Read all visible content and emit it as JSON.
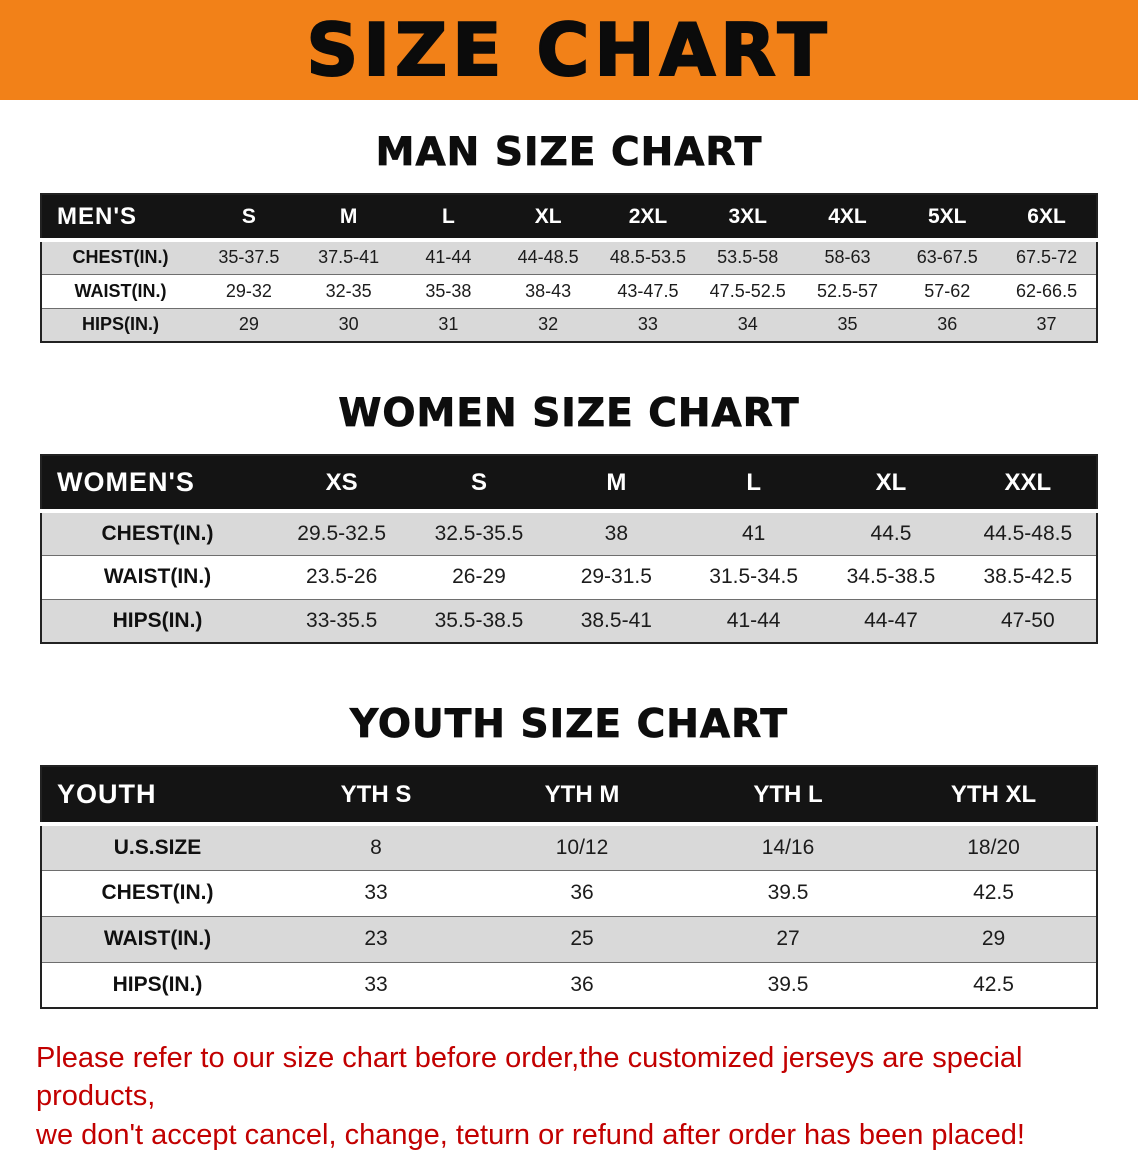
{
  "banner": {
    "title": "SIZE CHART"
  },
  "sections": [
    {
      "id": "men",
      "heading": "MAN SIZE CHART",
      "table": {
        "header": [
          "MEN'S",
          "S",
          "M",
          "L",
          "XL",
          "2XL",
          "3XL",
          "4XL",
          "5XL",
          "6XL"
        ],
        "rows": [
          [
            "CHEST(IN.)",
            "35-37.5",
            "37.5-41",
            "41-44",
            "44-48.5",
            "48.5-53.5",
            "53.5-58",
            "58-63",
            "63-67.5",
            "67.5-72"
          ],
          [
            "WAIST(IN.)",
            "29-32",
            "32-35",
            "35-38",
            "38-43",
            "43-47.5",
            "47.5-52.5",
            "52.5-57",
            "57-62",
            "62-66.5"
          ],
          [
            "HIPS(IN.)",
            "29",
            "30",
            "31",
            "32",
            "33",
            "34",
            "35",
            "36",
            "37"
          ]
        ]
      }
    },
    {
      "id": "women",
      "heading": "WOMEN SIZE CHART",
      "table": {
        "header": [
          "WOMEN'S",
          "XS",
          "S",
          "M",
          "L",
          "XL",
          "XXL"
        ],
        "rows": [
          [
            "CHEST(IN.)",
            "29.5-32.5",
            "32.5-35.5",
            "38",
            "41",
            "44.5",
            "44.5-48.5"
          ],
          [
            "WAIST(IN.)",
            "23.5-26",
            "26-29",
            "29-31.5",
            "31.5-34.5",
            "34.5-38.5",
            "38.5-42.5"
          ],
          [
            "HIPS(IN.)",
            "33-35.5",
            "35.5-38.5",
            "38.5-41",
            "41-44",
            "44-47",
            "47-50"
          ]
        ]
      }
    },
    {
      "id": "youth",
      "heading": "YOUTH SIZE CHART",
      "table": {
        "header": [
          "YOUTH",
          "YTH S",
          "YTH M",
          "YTH L",
          "YTH XL"
        ],
        "rows": [
          [
            "U.S.SIZE",
            "8",
            "10/12",
            "14/16",
            "18/20"
          ],
          [
            "CHEST(IN.)",
            "33",
            "36",
            "39.5",
            "42.5"
          ],
          [
            "WAIST(IN.)",
            "23",
            "25",
            "27",
            "29"
          ],
          [
            "HIPS(IN.)",
            "33",
            "36",
            "39.5",
            "42.5"
          ]
        ]
      }
    }
  ],
  "disclaimer": {
    "line1": "Please refer to our size chart before order,the customized jerseys are special products,",
    "line2": "we don't accept cancel, change, teturn or refund after order has been placed!"
  },
  "theme": {
    "banner_bg": "#F28118",
    "table_header_bg": "#141414",
    "row_alt_bg": "#D9D9D9",
    "disclaimer_color": "#C20000",
    "heading_color": "#0D0D0D"
  }
}
